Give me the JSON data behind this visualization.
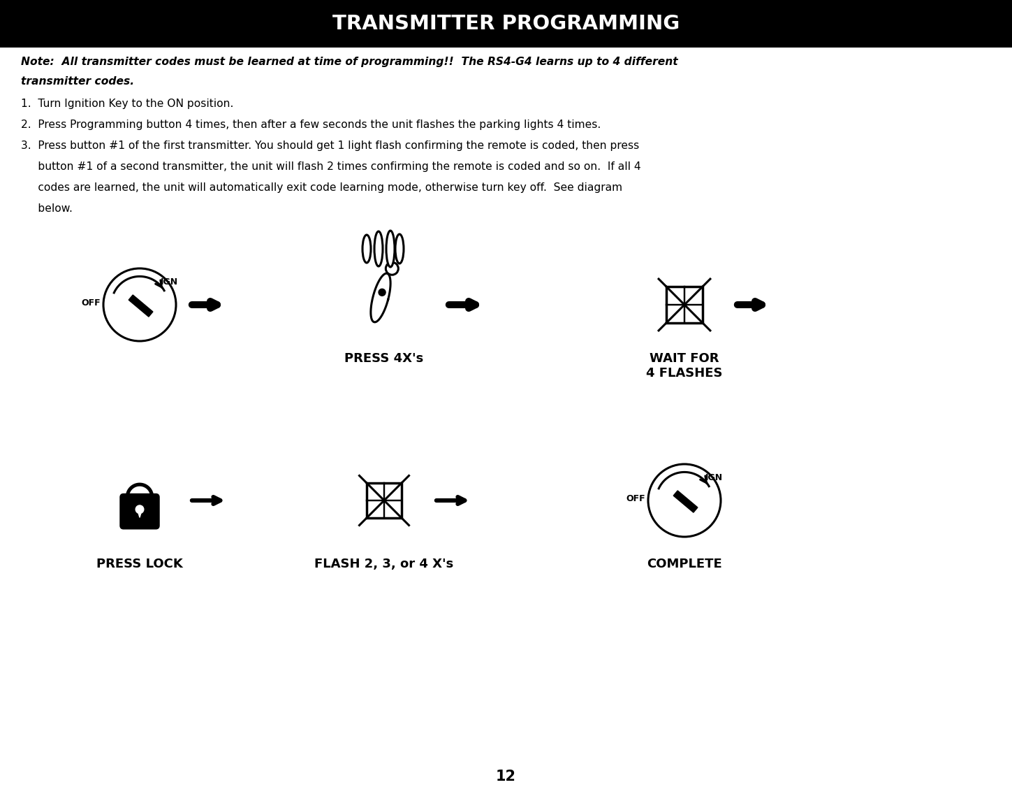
{
  "title": "TRANSMITTER PROGRAMMING",
  "title_bg": "#000000",
  "title_color": "#ffffff",
  "note_line1": "Note:  All transmitter codes must be learned at time of programming!!  The RS4-G4 learns up to 4 different",
  "note_line2": "transmitter codes.",
  "step1": "1.  Turn Ignition Key to the ON position.",
  "step2": "2.  Press Programming button 4 times, then after a few seconds the unit flashes the parking lights 4 times.",
  "step3_line1": "3.  Press button #1 of the first transmitter. You should get 1 light flash confirming the remote is coded, then press",
  "step3_line2": "     button #1 of a second transmitter, the unit will flash 2 times confirming the remote is coded and so on.  If all 4",
  "step3_line3": "     codes are learned, the unit will automatically exit code learning mode, otherwise turn key off.  See diagram",
  "step3_line4": "     below.",
  "label_press4x": "PRESS 4X's",
  "label_wait": "WAIT FOR\n4 FLASHES",
  "label_press_lock": "PRESS LOCK",
  "label_flash": "FLASH 2, 3, or 4 X's",
  "label_complete": "COMPLETE",
  "page_number": "12",
  "bg_color": "#ffffff",
  "text_color": "#000000",
  "lw": 2.2
}
